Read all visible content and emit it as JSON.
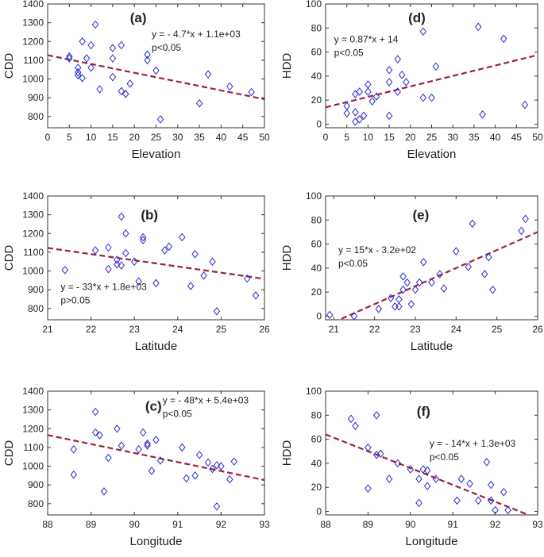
{
  "colors": {
    "marker": "#2b2bd0",
    "trend": "#9e1f3f",
    "axis": "#333333",
    "text": "#222222"
  },
  "chart_data": [
    {
      "type": "scatter",
      "panel_label": "(a)",
      "xlabel": "Elevation",
      "ylabel": "CDD",
      "xlim": [
        0,
        50
      ],
      "ylim": [
        740,
        1400
      ],
      "xticks": [
        0,
        5,
        10,
        15,
        20,
        25,
        30,
        35,
        40,
        45,
        50
      ],
      "yticks": [
        800,
        900,
        1000,
        1100,
        1200,
        1300,
        1400
      ],
      "equation": "y = - 4.7*x + 1.1e+03",
      "p_value": "p<0.05",
      "trend": {
        "slope": -4.7,
        "intercept": 1127
      },
      "points": [
        [
          5,
          1110
        ],
        [
          5,
          1120
        ],
        [
          7,
          1060
        ],
        [
          7,
          1035
        ],
        [
          7,
          1020
        ],
        [
          8,
          1005
        ],
        [
          8,
          1200
        ],
        [
          9,
          1110
        ],
        [
          10,
          1180
        ],
        [
          10,
          1060
        ],
        [
          11,
          1290
        ],
        [
          12,
          945
        ],
        [
          15,
          1010
        ],
        [
          15,
          1110
        ],
        [
          15,
          1165
        ],
        [
          17,
          1180
        ],
        [
          17,
          935
        ],
        [
          18,
          920
        ],
        [
          19,
          975
        ],
        [
          23,
          1100
        ],
        [
          23,
          1130
        ],
        [
          25,
          1045
        ],
        [
          26,
          785
        ],
        [
          35,
          870
        ],
        [
          37,
          1025
        ],
        [
          42,
          960
        ],
        [
          47,
          930
        ]
      ]
    },
    {
      "type": "scatter",
      "panel_label": "(d)",
      "xlabel": "Elevation",
      "ylabel": "HDD",
      "xlim": [
        0,
        50
      ],
      "ylim": [
        -3,
        100
      ],
      "xticks": [
        0,
        5,
        10,
        15,
        20,
        25,
        30,
        35,
        40,
        45,
        50
      ],
      "yticks": [
        0,
        20,
        40,
        60,
        80,
        100
      ],
      "equation": "y = 0.87*x + 14",
      "p_value": "p<0.05",
      "trend": {
        "slope": 0.87,
        "intercept": 14
      },
      "points": [
        [
          5,
          15
        ],
        [
          5,
          9
        ],
        [
          7,
          2
        ],
        [
          7,
          25
        ],
        [
          7,
          10
        ],
        [
          8,
          4
        ],
        [
          8,
          27
        ],
        [
          9,
          7
        ],
        [
          10,
          27
        ],
        [
          10,
          33
        ],
        [
          11,
          19
        ],
        [
          12,
          23
        ],
        [
          15,
          7
        ],
        [
          15,
          35
        ],
        [
          15,
          45
        ],
        [
          17,
          54
        ],
        [
          17,
          27
        ],
        [
          18,
          41
        ],
        [
          19,
          35
        ],
        [
          23,
          22
        ],
        [
          23,
          77
        ],
        [
          25,
          22
        ],
        [
          26,
          48
        ],
        [
          36,
          81
        ],
        [
          37,
          8
        ],
        [
          42,
          71
        ],
        [
          47,
          16
        ]
      ]
    },
    {
      "type": "scatter",
      "panel_label": "(b)",
      "xlabel": "Latitude",
      "ylabel": "CDD",
      "xlim": [
        21,
        26
      ],
      "ylim": [
        740,
        1400
      ],
      "xticks": [
        21,
        22,
        23,
        24,
        25,
        26
      ],
      "yticks": [
        800,
        900,
        1000,
        1100,
        1200,
        1300,
        1400
      ],
      "equation": "y = - 33*x + 1.8e+03",
      "p_value": "p>0.05",
      "trend": {
        "slope": -33,
        "intercept": 1816
      },
      "points": [
        [
          21.4,
          1005
        ],
        [
          22.1,
          1110
        ],
        [
          22.4,
          1125
        ],
        [
          22.4,
          1010
        ],
        [
          22.6,
          1035
        ],
        [
          22.6,
          1060
        ],
        [
          22.7,
          1030
        ],
        [
          22.7,
          1290
        ],
        [
          22.8,
          1200
        ],
        [
          22.8,
          1095
        ],
        [
          23.0,
          1050
        ],
        [
          23.1,
          945
        ],
        [
          23.2,
          1165
        ],
        [
          23.2,
          1180
        ],
        [
          23.5,
          935
        ],
        [
          23.7,
          1110
        ],
        [
          23.8,
          1130
        ],
        [
          24.1,
          1180
        ],
        [
          24.3,
          920
        ],
        [
          24.4,
          1090
        ],
        [
          24.6,
          975
        ],
        [
          24.8,
          1050
        ],
        [
          24.9,
          785
        ],
        [
          25.6,
          960
        ],
        [
          25.8,
          870
        ]
      ]
    },
    {
      "type": "scatter",
      "panel_label": "(e)",
      "xlabel": "Latitude",
      "ylabel": "HDD",
      "xlim": [
        20.8,
        26
      ],
      "ylim": [
        -3,
        100
      ],
      "xticks": [
        21,
        22,
        23,
        24,
        25,
        26
      ],
      "yticks": [
        0,
        20,
        40,
        60,
        80,
        100
      ],
      "equation": "y = 15*x - 3.2e+02",
      "p_value": "p<0.05",
      "trend": {
        "slope": 15,
        "intercept": -320
      },
      "points": [
        [
          20.9,
          1
        ],
        [
          21.5,
          0
        ],
        [
          22.1,
          6
        ],
        [
          22.4,
          15
        ],
        [
          22.5,
          8
        ],
        [
          22.6,
          8
        ],
        [
          22.6,
          14
        ],
        [
          22.7,
          22
        ],
        [
          22.8,
          28
        ],
        [
          22.9,
          10
        ],
        [
          23.0,
          22
        ],
        [
          23.1,
          28
        ],
        [
          23.2,
          45
        ],
        [
          23.4,
          28
        ],
        [
          23.6,
          35
        ],
        [
          24.0,
          54
        ],
        [
          24.3,
          41
        ],
        [
          24.4,
          77
        ],
        [
          24.7,
          35
        ],
        [
          24.8,
          49
        ],
        [
          24.9,
          22
        ],
        [
          25.6,
          71
        ],
        [
          25.7,
          81
        ],
        [
          22.7,
          33
        ],
        [
          23.7,
          23
        ]
      ]
    },
    {
      "type": "scatter",
      "panel_label": "(c)",
      "xlabel": "Longitude",
      "ylabel": "CDD",
      "xlim": [
        88,
        93
      ],
      "ylim": [
        740,
        1400
      ],
      "xticks": [
        88,
        89,
        90,
        91,
        92,
        93
      ],
      "yticks": [
        800,
        900,
        1000,
        1100,
        1200,
        1300,
        1400
      ],
      "equation": "y = - 48*x + 5.4e+03",
      "p_value": "p<0.05",
      "trend": {
        "slope": -48,
        "intercept": 5390
      },
      "points": [
        [
          88.6,
          1090
        ],
        [
          88.6,
          955
        ],
        [
          89.1,
          1290
        ],
        [
          89.1,
          1180
        ],
        [
          89.2,
          1165
        ],
        [
          89.3,
          865
        ],
        [
          89.4,
          1045
        ],
        [
          89.6,
          1200
        ],
        [
          89.7,
          1110
        ],
        [
          90.1,
          1090
        ],
        [
          90.2,
          1180
        ],
        [
          90.3,
          1110
        ],
        [
          90.3,
          1120
        ],
        [
          90.4,
          975
        ],
        [
          90.5,
          1140
        ],
        [
          90.6,
          1030
        ],
        [
          91.1,
          1100
        ],
        [
          91.2,
          935
        ],
        [
          91.4,
          950
        ],
        [
          91.5,
          1060
        ],
        [
          91.7,
          1020
        ],
        [
          91.8,
          985
        ],
        [
          91.9,
          1005
        ],
        [
          92.0,
          1000
        ],
        [
          91.9,
          785
        ],
        [
          92.2,
          930
        ],
        [
          92.3,
          1025
        ]
      ]
    },
    {
      "type": "scatter",
      "panel_label": "(f)",
      "xlabel": "Longitude",
      "ylabel": "HDD",
      "xlim": [
        88,
        93
      ],
      "ylim": [
        -3,
        100
      ],
      "xticks": [
        88,
        89,
        90,
        91,
        92,
        93
      ],
      "yticks": [
        0,
        20,
        40,
        60,
        80,
        100
      ],
      "equation": "y = - 14*x + 1.3e+03",
      "p_value": "p<0.05",
      "trend": {
        "slope": -14,
        "intercept": 1296
      },
      "points": [
        [
          88.6,
          77
        ],
        [
          88.7,
          71
        ],
        [
          89.0,
          53
        ],
        [
          89.2,
          47
        ],
        [
          89.2,
          80
        ],
        [
          89.3,
          48
        ],
        [
          89.0,
          19
        ],
        [
          89.5,
          27
        ],
        [
          89.7,
          40
        ],
        [
          90.0,
          35
        ],
        [
          90.2,
          27
        ],
        [
          90.2,
          7
        ],
        [
          90.3,
          35
        ],
        [
          90.4,
          21
        ],
        [
          90.4,
          34
        ],
        [
          90.6,
          27
        ],
        [
          91.1,
          9
        ],
        [
          91.2,
          27
        ],
        [
          91.4,
          23
        ],
        [
          91.6,
          9
        ],
        [
          91.8,
          41
        ],
        [
          91.9,
          9
        ],
        [
          91.9,
          22
        ],
        [
          92.0,
          1
        ],
        [
          92.2,
          16
        ],
        [
          92.3,
          1
        ]
      ]
    }
  ]
}
